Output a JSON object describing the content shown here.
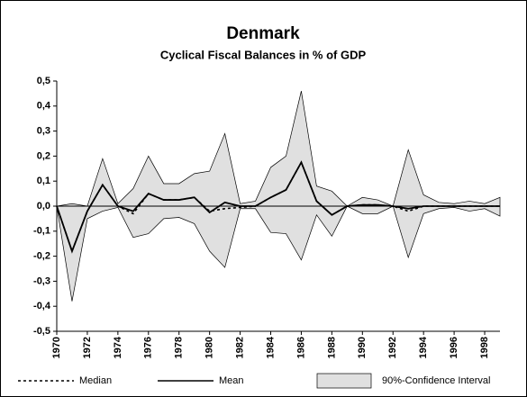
{
  "chart_data": {
    "type": "line",
    "title": "Denmark",
    "subtitle": "Cyclical Fiscal Balances in % of GDP",
    "x": [
      1970,
      1971,
      1972,
      1973,
      1974,
      1975,
      1976,
      1977,
      1978,
      1979,
      1980,
      1981,
      1982,
      1983,
      1984,
      1985,
      1986,
      1987,
      1988,
      1989,
      1990,
      1991,
      1992,
      1993,
      1994,
      1995,
      1996,
      1997,
      1998,
      1999
    ],
    "series": [
      {
        "name": "Median",
        "color": "#000000",
        "dash": true,
        "values": [
          0,
          -0.18,
          -0.02,
          0.085,
          0,
          -0.03,
          0.05,
          0.025,
          0.025,
          0.035,
          -0.02,
          -0.01,
          -0.005,
          0,
          0.035,
          0.065,
          0.175,
          0.02,
          -0.035,
          0,
          0.005,
          0.005,
          0,
          -0.02,
          0,
          0,
          0,
          0,
          0,
          0
        ]
      },
      {
        "name": "Mean",
        "color": "#000000",
        "dash": false,
        "values": [
          0,
          -0.18,
          -0.02,
          0.085,
          0,
          -0.02,
          0.05,
          0.025,
          0.025,
          0.035,
          -0.025,
          0.015,
          0,
          0,
          0.035,
          0.065,
          0.175,
          0.02,
          -0.035,
          0,
          0.005,
          0.005,
          0,
          -0.01,
          0,
          0,
          0,
          0,
          0,
          0
        ]
      }
    ],
    "band": {
      "name": "90%-Confidence Interval",
      "color": "#e0e0e0",
      "upper": [
        0,
        0.01,
        0,
        0.19,
        0.01,
        0.07,
        0.2,
        0.09,
        0.09,
        0.13,
        0.14,
        0.29,
        0.01,
        0.02,
        0.155,
        0.2,
        0.46,
        0.08,
        0.06,
        0,
        0.035,
        0.025,
        0,
        0.225,
        0.045,
        0.015,
        0.01,
        0.02,
        0.01,
        0.035
      ],
      "lower": [
        0,
        -0.38,
        -0.05,
        -0.02,
        -0.005,
        -0.125,
        -0.11,
        -0.05,
        -0.045,
        -0.07,
        -0.18,
        -0.245,
        -0.01,
        -0.01,
        -0.105,
        -0.11,
        -0.215,
        -0.035,
        -0.12,
        0,
        -0.03,
        -0.03,
        0,
        -0.205,
        -0.03,
        -0.01,
        -0.005,
        -0.02,
        -0.01,
        -0.04
      ]
    },
    "xlim": [
      1970,
      1999
    ],
    "xticks": [
      1970,
      1972,
      1974,
      1976,
      1978,
      1980,
      1982,
      1984,
      1986,
      1988,
      1990,
      1992,
      1994,
      1996,
      1998
    ],
    "ylim": [
      -0.5,
      0.5
    ],
    "yticks": [
      {
        "value": -0.5,
        "label": "-0,5"
      },
      {
        "value": -0.4,
        "label": "-0,4"
      },
      {
        "value": -0.3,
        "label": "-0,3"
      },
      {
        "value": -0.2,
        "label": "-0,2"
      },
      {
        "value": -0.1,
        "label": "-0,1"
      },
      {
        "value": 0,
        "label": "0,0"
      },
      {
        "value": 0.1,
        "label": "0,1"
      },
      {
        "value": 0.2,
        "label": "0,2"
      },
      {
        "value": 0.3,
        "label": "0,3"
      },
      {
        "value": 0.4,
        "label": "0,4"
      },
      {
        "value": 0.5,
        "label": "0,5"
      }
    ],
    "grid": false
  }
}
